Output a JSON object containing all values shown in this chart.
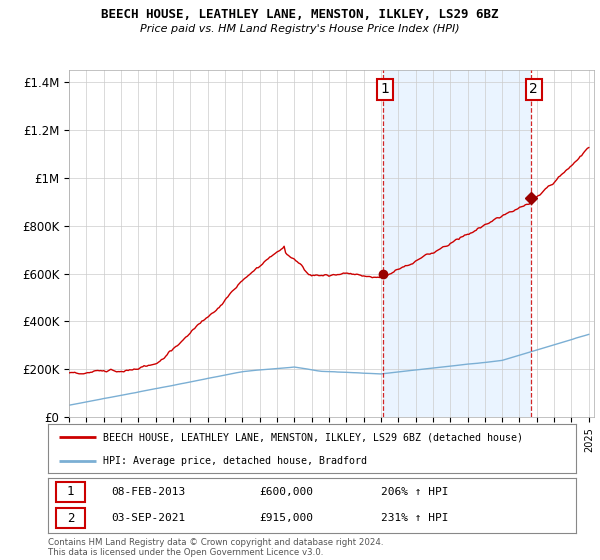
{
  "title1": "BEECH HOUSE, LEATHLEY LANE, MENSTON, ILKLEY, LS29 6BZ",
  "title2": "Price paid vs. HM Land Registry's House Price Index (HPI)",
  "ylim": [
    0,
    1450000
  ],
  "yticks": [
    0,
    200000,
    400000,
    600000,
    800000,
    1000000,
    1200000,
    1400000
  ],
  "ytick_labels": [
    "£0",
    "£200K",
    "£400K",
    "£600K",
    "£800K",
    "£1M",
    "£1.2M",
    "£1.4M"
  ],
  "xstart_year": 1995,
  "xend_year": 2025,
  "sale1_year": 2013.1,
  "sale1_value": 600000,
  "sale2_year": 2021.67,
  "sale2_value": 915000,
  "legend_line1": "BEECH HOUSE, LEATHLEY LANE, MENSTON, ILKLEY, LS29 6BZ (detached house)",
  "legend_line2": "HPI: Average price, detached house, Bradford",
  "annotation1_label": "1",
  "annotation1_date": "08-FEB-2013",
  "annotation1_price": "£600,000",
  "annotation1_pct": "206% ↑ HPI",
  "annotation2_label": "2",
  "annotation2_date": "03-SEP-2021",
  "annotation2_price": "£915,000",
  "annotation2_pct": "231% ↑ HPI",
  "footer1": "Contains HM Land Registry data © Crown copyright and database right 2024.",
  "footer2": "This data is licensed under the Open Government Licence v3.0.",
  "hpi_color": "#7bafd4",
  "price_color": "#cc0000",
  "sale_dot_color": "#990000",
  "vline_color": "#cc0000",
  "grid_color": "#cccccc",
  "bg_color": "#ffffff",
  "shade_color": "#ddeeff"
}
